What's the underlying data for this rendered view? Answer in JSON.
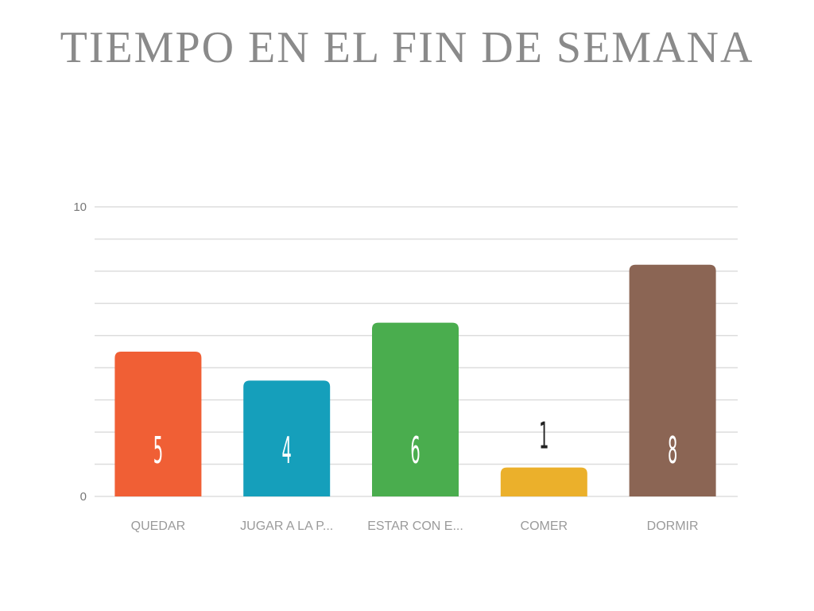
{
  "chart_data": {
    "type": "bar",
    "title": "TIEMPO EN EL FIN DE SEMANA",
    "categories": [
      "QUEDAR",
      "JUGAR A LA P...",
      "ESTAR CON E...",
      "COMER",
      "DORMIR"
    ],
    "values": [
      5,
      4,
      6,
      1,
      8
    ],
    "colors": [
      "#f05f35",
      "#159fbb",
      "#4aad4e",
      "#ebb02b",
      "#8b6554"
    ],
    "value_label_colors": [
      "#ffffff",
      "#ffffff",
      "#ffffff",
      "#222222",
      "#ffffff"
    ],
    "ylim": [
      0,
      10
    ],
    "y_ticks": [
      "0",
      "10"
    ],
    "grid": true,
    "xlabel": "",
    "ylabel": ""
  }
}
